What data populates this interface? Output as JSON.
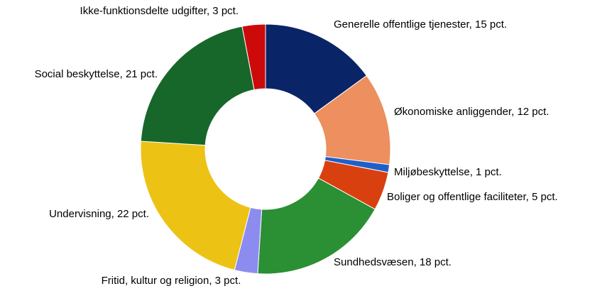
{
  "chart_data": {
    "type": "donut",
    "categories": [
      "Generelle offentlige tjenester, 15 pct.",
      "Økonomiske anliggender, 12 pct.",
      "Miljøbeskyttelse, 1 pct.",
      "Boliger og offentlige faciliteter, 5 pct.",
      "Sundhedsvæsen, 18 pct.",
      "Fritid, kultur og religion, 3 pct.",
      "Undervisning, 22 pct.",
      "Social beskyttelse, 21 pct.",
      "Ikke-funktionsdelte udgifter, 3 pct."
    ],
    "values": [
      15,
      12,
      1,
      5,
      18,
      3,
      22,
      21,
      3
    ],
    "colors": [
      "#0a2468",
      "#ed8f5e",
      "#1f5fc8",
      "#d9400f",
      "#2b8f33",
      "#8c8cf0",
      "#ecc215",
      "#17672a",
      "#cc0a0a"
    ]
  }
}
